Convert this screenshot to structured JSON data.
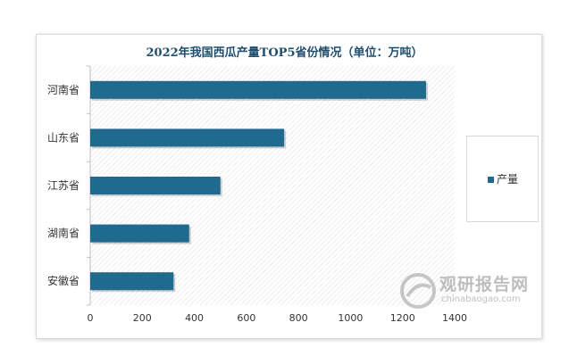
{
  "chart_data": {
    "type": "bar",
    "orientation": "horizontal",
    "title": "2022年我国西瓜产量TOP5省份情况（单位：万吨）",
    "categories": [
      "河南省",
      "山东省",
      "江苏省",
      "湖南省",
      "安徽省"
    ],
    "series": [
      {
        "name": "产量",
        "values": [
          1290,
          745,
          500,
          380,
          320
        ],
        "color": "#1f6a8e"
      }
    ],
    "xlim": [
      0,
      1400
    ],
    "xticks": [
      "0",
      "200",
      "400",
      "600",
      "800",
      "1000",
      "1200",
      "1400"
    ],
    "legend_position": "right",
    "plot_background": "diagonal-hatch"
  },
  "watermark": {
    "text": "观研报告网",
    "sub": "chinabaogao.com"
  }
}
